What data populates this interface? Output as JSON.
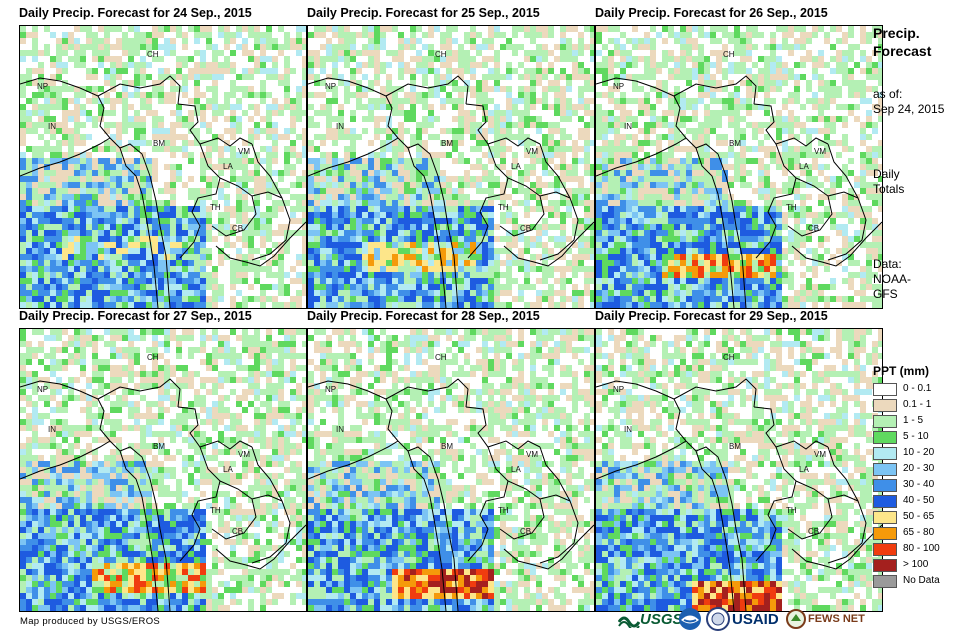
{
  "panels": [
    {
      "title": "Daily Precip. Forecast for 24 Sep., 2015",
      "heavy": 1
    },
    {
      "title": "Daily Precip. Forecast for 25 Sep., 2015",
      "heavy": 2
    },
    {
      "title": "Daily Precip. Forecast for 26 Sep., 2015",
      "heavy": 3
    },
    {
      "title": "Daily Precip. Forecast for 27 Sep., 2015",
      "heavy": 3
    },
    {
      "title": "Daily Precip. Forecast for 28 Sep., 2015",
      "heavy": 4
    },
    {
      "title": "Daily Precip. Forecast for 29 Sep., 2015",
      "heavy": 5
    }
  ],
  "countries": [
    "CH",
    "NP",
    "IN",
    "BM",
    "LA",
    "VM",
    "TH",
    "CB"
  ],
  "side": {
    "title_line1": "Precip.",
    "title_line2": "Forecast",
    "asof_line1": "as of:",
    "asof_line2": "Sep 24, 2015",
    "daily_line1": "Daily",
    "daily_line2": "Totals",
    "data_line1": "Data:",
    "data_line2": "NOAA-",
    "data_line3": "GFS"
  },
  "legend": {
    "title": "PPT (mm)",
    "items": [
      {
        "label": "0 - 0.1",
        "color": "#ffffff"
      },
      {
        "label": "0.1 - 1",
        "color": "#ecd9bd"
      },
      {
        "label": "1 - 5",
        "color": "#b4f0b4"
      },
      {
        "label": "5 - 10",
        "color": "#5fd95f"
      },
      {
        "label": "10 - 20",
        "color": "#b2eaf2"
      },
      {
        "label": "20 - 30",
        "color": "#7cc4f4"
      },
      {
        "label": "30 - 40",
        "color": "#3f8fe8"
      },
      {
        "label": "40 - 50",
        "color": "#1e5be0"
      },
      {
        "label": "50 - 65",
        "color": "#fde68a"
      },
      {
        "label": "65 - 80",
        "color": "#f59a0a"
      },
      {
        "label": "80 - 100",
        "color": "#f03c0f"
      },
      {
        "label": "> 100",
        "color": "#a4201e"
      },
      {
        "label": "No Data",
        "color": "#9a9a9a"
      }
    ]
  },
  "credit": "Map produced by USGS/EROS",
  "logos": {
    "usgs": "USGS",
    "usaid": "USAID",
    "fewsnet": "FEWS NET"
  }
}
